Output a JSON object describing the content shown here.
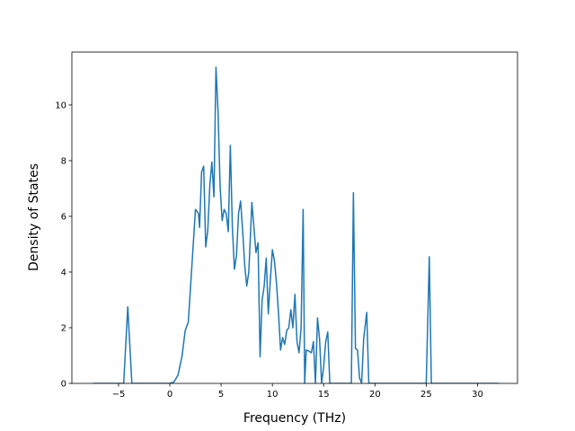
{
  "chart_data": {
    "type": "line",
    "xlabel": "Frequency (THz)",
    "ylabel": "Density of States",
    "xlim": [
      -9.55,
      33.9
    ],
    "ylim": [
      0,
      11.9
    ],
    "xticks": [
      {
        "value": -5,
        "label": "−5"
      },
      0,
      5,
      10,
      15,
      20,
      25,
      30
    ],
    "yticks": [
      0,
      2,
      4,
      6,
      8,
      10
    ],
    "grid": false,
    "series": [
      {
        "color": "#1f77b4",
        "x": [
          -7.5,
          -4.5,
          -4.1,
          -3.7,
          0,
          0.4,
          0.8,
          1.2,
          1.5,
          1.8,
          2.2,
          2.5,
          2.8,
          2.9,
          3.1,
          3.3,
          3.5,
          3.7,
          3.9,
          4.1,
          4.3,
          4.5,
          4.7,
          4.9,
          5.1,
          5.3,
          5.5,
          5.7,
          5.9,
          6.1,
          6.3,
          6.5,
          6.7,
          6.9,
          7.1,
          7.3,
          7.5,
          7.7,
          8.0,
          8.2,
          8.4,
          8.6,
          8.8,
          9.0,
          9.2,
          9.4,
          9.6,
          9.8,
          10.0,
          10.2,
          10.4,
          10.6,
          10.8,
          11.0,
          11.2,
          11.4,
          11.6,
          11.8,
          12.0,
          12.2,
          12.4,
          12.6,
          12.8,
          13.0,
          13.15,
          13.3,
          13.6,
          13.8,
          14.0,
          14.2,
          14.4,
          14.6,
          14.8,
          15.0,
          15.2,
          15.4,
          15.6,
          17.7,
          17.9,
          18.1,
          18.3,
          18.5,
          18.7,
          18.9,
          19.2,
          19.4,
          25.0,
          25.3,
          25.5,
          32.1
        ],
        "values": [
          0,
          0,
          2.75,
          0,
          0,
          0.05,
          0.3,
          1.0,
          1.9,
          2.2,
          4.5,
          6.25,
          6.1,
          5.6,
          7.6,
          7.8,
          4.9,
          5.5,
          7.1,
          7.95,
          6.7,
          11.35,
          9.8,
          7.1,
          5.85,
          6.25,
          6.1,
          5.45,
          8.55,
          5.6,
          4.1,
          4.6,
          6.1,
          6.55,
          5.5,
          4.25,
          3.5,
          4.0,
          6.5,
          5.6,
          4.7,
          5.05,
          0.95,
          3.0,
          3.5,
          4.5,
          2.5,
          3.7,
          4.8,
          4.4,
          3.6,
          2.5,
          1.2,
          1.65,
          1.4,
          1.9,
          2.0,
          2.65,
          2.0,
          3.2,
          1.5,
          1.1,
          2.0,
          6.25,
          0,
          1.2,
          1.15,
          1.1,
          1.5,
          0,
          2.35,
          1.6,
          0,
          0.6,
          1.5,
          1.85,
          0,
          0,
          6.85,
          1.25,
          1.2,
          0.2,
          0,
          1.6,
          2.55,
          0,
          0,
          4.55,
          0,
          0
        ]
      }
    ]
  }
}
